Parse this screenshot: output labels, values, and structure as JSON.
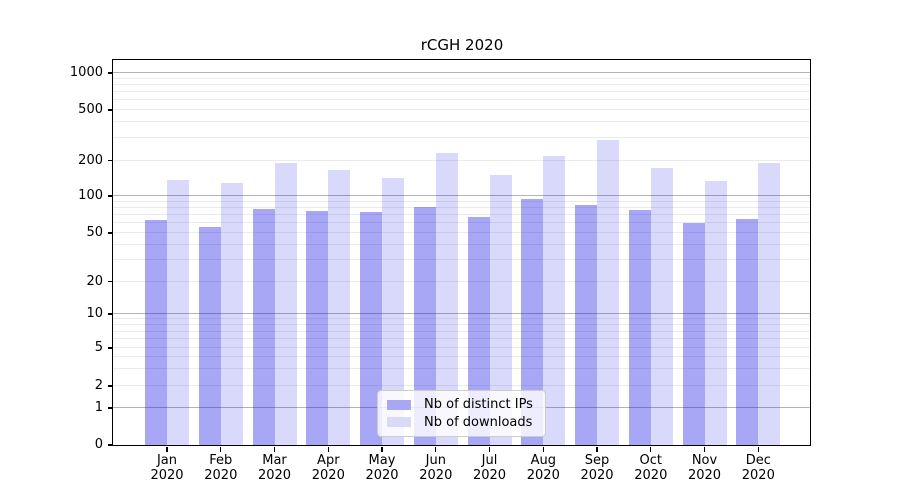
{
  "title": "rCGH 2020",
  "chart_data": {
    "type": "bar",
    "title": "rCGH 2020",
    "scale": "symlog",
    "grid": "horizontal major and minor gridlines",
    "legend_position": "lower center",
    "xlabel": "",
    "ylabel": "",
    "y_ticks": [
      0,
      1,
      2,
      5,
      10,
      20,
      50,
      100,
      200,
      500,
      1000
    ],
    "ylim": [
      0,
      1200
    ],
    "categories": [
      "Jan",
      "Feb",
      "Mar",
      "Apr",
      "May",
      "Jun",
      "Jul",
      "Aug",
      "Sep",
      "Oct",
      "Nov",
      "Dec"
    ],
    "category_year": "2020",
    "series": [
      {
        "name": "Nb of distinct IPs",
        "color": "#a7a7f3",
        "fill": "rgba(10,10,230,0.36)",
        "values": [
          64,
          56,
          78,
          76,
          74,
          82,
          68,
          95,
          84,
          77,
          60,
          65
        ]
      },
      {
        "name": "Nb of downloads",
        "color": "#d9d9f9",
        "fill": "rgba(10,10,230,0.155)",
        "values": [
          137,
          130,
          190,
          167,
          142,
          228,
          152,
          218,
          292,
          172,
          134,
          192
        ]
      }
    ]
  },
  "colors": {
    "major_grid": "#b4b4b4",
    "minor_grid": "#ebebeb",
    "axis": "#000000",
    "background": "#ffffff"
  }
}
